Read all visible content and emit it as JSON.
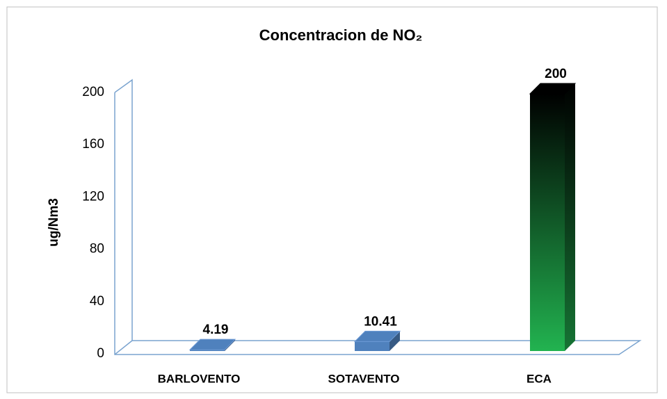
{
  "chart_data": {
    "type": "bar3d",
    "title": "Concentracion de NO₂",
    "y_label": "ug/Nm3",
    "categories": [
      "BARLOVENTO",
      "SOTAVENTO",
      "ECA"
    ],
    "values": [
      4.19,
      10.41,
      200
    ],
    "colors": [
      "#4f81bd",
      "#4f81bd",
      "#22b350"
    ],
    "ylim": [
      0,
      200
    ],
    "yticks": [
      0,
      40,
      80,
      120,
      160,
      200
    ],
    "grid": false
  }
}
